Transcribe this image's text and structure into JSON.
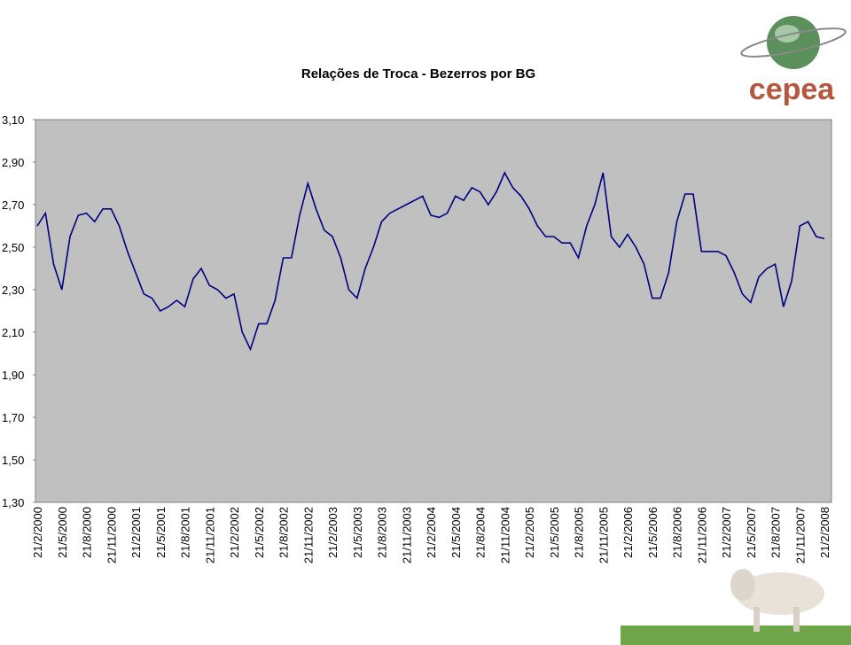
{
  "chart_data": {
    "type": "line",
    "title": "Relações de Troca - Bezerros por BG",
    "logo": "cepea",
    "categories": [
      "21/2/2000",
      null,
      null,
      "21/5/2000",
      null,
      null,
      "21/8/2000",
      null,
      null,
      "21/11/2000",
      null,
      null,
      "21/2/2001",
      null,
      null,
      "21/5/2001",
      null,
      null,
      "21/8/2001",
      null,
      null,
      "21/11/2001",
      null,
      null,
      "21/2/2002",
      null,
      null,
      "21/5/2002",
      null,
      null,
      "21/8/2002",
      null,
      null,
      "21/11/2002",
      null,
      null,
      "21/2/2003",
      null,
      null,
      "21/5/2003",
      null,
      null,
      "21/8/2003",
      null,
      null,
      "21/11/2003",
      null,
      null,
      "21/2/2004",
      null,
      null,
      "21/5/2004",
      null,
      null,
      "21/8/2004",
      null,
      null,
      "21/11/2004",
      null,
      null,
      "21/2/2005",
      null,
      null,
      "21/5/2005",
      null,
      null,
      "21/8/2005",
      null,
      null,
      "21/11/2005",
      null,
      null,
      "21/2/2006",
      null,
      null,
      "21/5/2006",
      null,
      null,
      "21/8/2006",
      null,
      null,
      "21/11/2006",
      null,
      null,
      "21/2/2007",
      null,
      null,
      "21/5/2007",
      null,
      null,
      "21/8/2007",
      null,
      null,
      "21/11/2007",
      null,
      null,
      "21/2/2008"
    ],
    "series": [
      {
        "color": "#000080",
        "values": [
          2.6,
          2.66,
          2.42,
          2.3,
          2.55,
          2.65,
          2.66,
          2.62,
          2.68,
          2.68,
          2.6,
          2.48,
          2.38,
          2.28,
          2.26,
          2.2,
          2.22,
          2.25,
          2.22,
          2.35,
          2.4,
          2.32,
          2.3,
          2.26,
          2.28,
          2.1,
          2.02,
          2.14,
          2.14,
          2.25,
          2.45,
          2.45,
          2.65,
          2.8,
          2.68,
          2.58,
          2.55,
          2.45,
          2.3,
          2.26,
          2.4,
          2.5,
          2.62,
          2.66,
          2.68,
          2.7,
          2.72,
          2.74,
          2.65,
          2.64,
          2.66,
          2.74,
          2.72,
          2.78,
          2.76,
          2.7,
          2.76,
          2.85,
          2.78,
          2.74,
          2.68,
          2.6,
          2.55,
          2.55,
          2.52,
          2.52,
          2.45,
          2.6,
          2.7,
          2.85,
          2.55,
          2.5,
          2.56,
          2.5,
          2.42,
          2.26,
          2.26,
          2.38,
          2.62,
          2.75,
          2.75,
          2.48,
          2.48,
          2.48,
          2.46,
          2.38,
          2.28,
          2.24,
          2.36,
          2.4,
          2.42,
          2.22,
          2.34,
          2.6,
          2.62,
          2.55,
          2.54
        ]
      }
    ],
    "ylim": [
      1.3,
      3.1
    ],
    "yticks": [
      {
        "value": 3.1,
        "label": "3,10"
      },
      {
        "value": 2.9,
        "label": "2,90"
      },
      {
        "value": 2.7,
        "label": "2,70"
      },
      {
        "value": 2.5,
        "label": "2,50"
      },
      {
        "value": 2.3,
        "label": "2,30"
      },
      {
        "value": 2.1,
        "label": "2,10"
      },
      {
        "value": 1.9,
        "label": "1,90"
      },
      {
        "value": 1.7,
        "label": "1,70"
      },
      {
        "value": 1.5,
        "label": "1,50"
      },
      {
        "value": 1.3,
        "label": "1,30"
      }
    ],
    "grid": false,
    "background": "#c0c0c0"
  }
}
